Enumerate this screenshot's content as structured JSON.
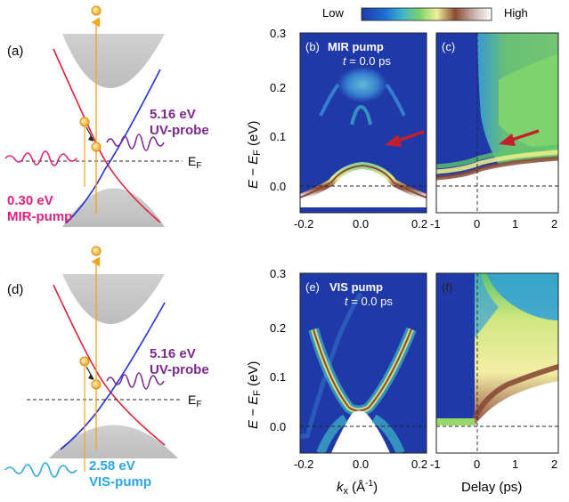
{
  "colorbar": {
    "low": "Low",
    "high": "High"
  },
  "panels": {
    "a": {
      "tag": "(a)",
      "probe_energy": "5.16 eV",
      "probe_name": "UV-probe",
      "fermi": "E",
      "fermi_sub": "F",
      "pump_energy": "0.30 eV",
      "pump_name": "MIR-pump",
      "pump_color": "#e0207a",
      "probe_color": "#7b2a8c"
    },
    "b": {
      "tag": "(b)",
      "title": "MIR pump",
      "time_prefix": "t",
      "time_value": " = 0.0 ps"
    },
    "c": {
      "tag": "(c)"
    },
    "d": {
      "tag": "(d)",
      "probe_energy": "5.16 eV",
      "probe_name": "UV-probe",
      "fermi": "E",
      "fermi_sub": "F",
      "pump_energy": "2.58 eV",
      "pump_name": "VIS-pump",
      "pump_color": "#2aa6e0",
      "probe_color": "#7b2a8c"
    },
    "e": {
      "tag": "(e)",
      "title": "VIS pump",
      "time_prefix": "t",
      "time_value": " = 0.0 ps"
    },
    "f": {
      "tag": "(f)"
    }
  },
  "axes": {
    "ylabel_main": "E − E",
    "ylabel_sub": "F",
    "ylabel_unit": " (eV)",
    "y_ticks": [
      "0.3",
      "0.2",
      "0.1",
      "0.0"
    ],
    "kx_ticks": [
      "-0.2",
      "0.0",
      "0.2"
    ],
    "delay_ticks": [
      "-1",
      "0",
      "1",
      "2"
    ],
    "xlabel_k_main": "k",
    "xlabel_k_sub": "x",
    "xlabel_k_unit": " (Å",
    "xlabel_k_exp": "-1",
    "xlabel_k_close": ")",
    "xlabel_delay": "Delay (ps)"
  }
}
